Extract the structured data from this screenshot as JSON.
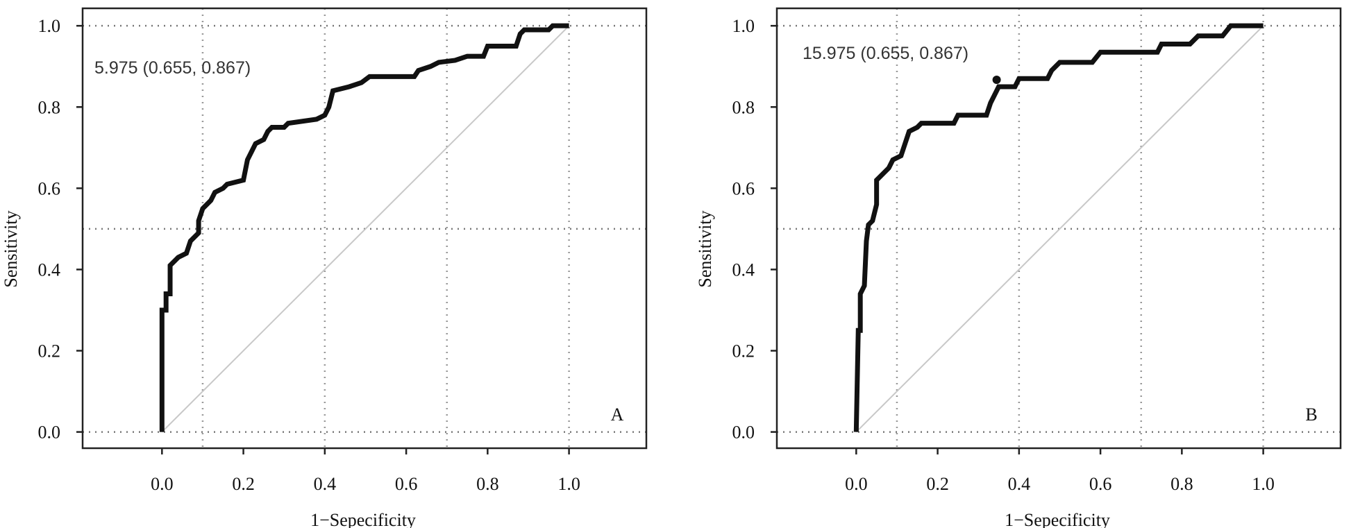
{
  "chart_data": [
    {
      "type": "line",
      "panel_label": "A",
      "annotation": "5.975 (0.655, 0.867)",
      "xlabel": "1−Sepecificity",
      "ylabel": "Sensitivity",
      "xlim": [
        -0.195,
        1.19
      ],
      "ylim": [
        -0.04,
        1.043
      ],
      "xticks": [
        {
          "value": 0,
          "label": "0.0"
        },
        0.2,
        0.4,
        0.6,
        0.8,
        {
          "value": 1,
          "label": "1.0"
        }
      ],
      "yticks": [
        {
          "value": 0,
          "label": "0.0"
        },
        0.2,
        0.4,
        0.6,
        0.8,
        {
          "value": 1,
          "label": "1.0"
        }
      ],
      "xgrid": [
        0.1,
        0.4,
        0.7,
        1.0
      ],
      "ygrid": [
        0,
        0.5,
        1
      ],
      "series": [
        {
          "color": "#111111",
          "x": [
            0,
            0,
            0.01,
            0.01,
            0.02,
            0.02,
            0.04,
            0.06,
            0.07,
            0.09,
            0.09,
            0.1,
            0.12,
            0.13,
            0.15,
            0.16,
            0.2,
            0.21,
            0.22,
            0.23,
            0.25,
            0.26,
            0.27,
            0.3,
            0.31,
            0.38,
            0.4,
            0.41,
            0.42,
            0.46,
            0.49,
            0.51,
            0.62,
            0.63,
            0.66,
            0.68,
            0.72,
            0.75,
            0.79,
            0.8,
            0.87,
            0.88,
            0.89,
            0.95,
            0.96,
            1
          ],
          "values": [
            0,
            0.3,
            0.3,
            0.34,
            0.34,
            0.41,
            0.43,
            0.44,
            0.47,
            0.49,
            0.52,
            0.55,
            0.57,
            0.59,
            0.6,
            0.61,
            0.62,
            0.67,
            0.69,
            0.71,
            0.72,
            0.74,
            0.75,
            0.75,
            0.76,
            0.77,
            0.78,
            0.8,
            0.84,
            0.85,
            0.86,
            0.875,
            0.875,
            0.89,
            0.9,
            0.91,
            0.915,
            0.925,
            0.925,
            0.95,
            0.95,
            0.98,
            0.99,
            0.99,
            1,
            1
          ]
        }
      ]
    },
    {
      "type": "line",
      "panel_label": "B",
      "annotation": "15.975 (0.655, 0.867)",
      "xlabel": "1−Sepecificity",
      "ylabel": "Sensitivity",
      "xlim": [
        -0.195,
        1.19
      ],
      "ylim": [
        -0.04,
        1.043
      ],
      "xticks": [
        {
          "value": 0,
          "label": "0.0"
        },
        0.2,
        0.4,
        0.6,
        0.8,
        {
          "value": 1,
          "label": "1.0"
        }
      ],
      "yticks": [
        {
          "value": 0,
          "label": "0.0"
        },
        0.2,
        0.4,
        0.6,
        0.8,
        {
          "value": 1,
          "label": "1.0"
        }
      ],
      "xgrid": [
        0.1,
        0.4,
        0.7,
        1.0
      ],
      "ygrid": [
        0,
        0.5,
        1
      ],
      "point": [
        0.345,
        0.867
      ],
      "series": [
        {
          "color": "#111111",
          "x": [
            0,
            0.005,
            0.01,
            0.01,
            0.02,
            0.025,
            0.03,
            0.04,
            0.05,
            0.05,
            0.07,
            0.08,
            0.09,
            0.11,
            0.12,
            0.13,
            0.15,
            0.16,
            0.24,
            0.25,
            0.32,
            0.33,
            0.34,
            0.35,
            0.39,
            0.4,
            0.47,
            0.48,
            0.5,
            0.58,
            0.6,
            0.74,
            0.75,
            0.82,
            0.84,
            0.9,
            0.92,
            1
          ],
          "values": [
            0,
            0.25,
            0.25,
            0.34,
            0.36,
            0.47,
            0.51,
            0.52,
            0.56,
            0.62,
            0.64,
            0.65,
            0.67,
            0.68,
            0.71,
            0.74,
            0.75,
            0.76,
            0.76,
            0.78,
            0.78,
            0.81,
            0.83,
            0.85,
            0.85,
            0.87,
            0.87,
            0.89,
            0.91,
            0.91,
            0.935,
            0.935,
            0.955,
            0.955,
            0.975,
            0.975,
            1,
            1
          ]
        }
      ]
    }
  ]
}
